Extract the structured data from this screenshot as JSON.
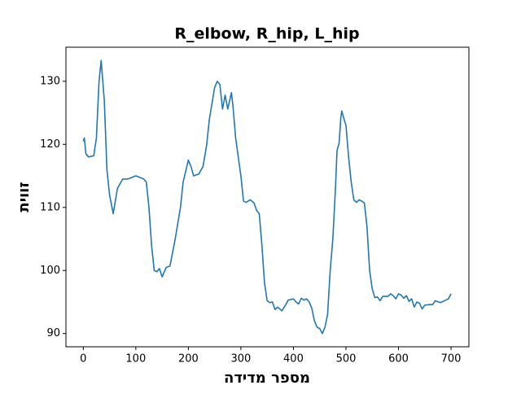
{
  "chart_data": {
    "type": "line",
    "title": "R_elbow, R_hip, L_hip",
    "x_label": "מספר מדידה",
    "y_label": "זווית",
    "color": "#1f77b4",
    "x": [
      0,
      2,
      5,
      10,
      20,
      25,
      30,
      34,
      40,
      45,
      50,
      57,
      65,
      75,
      85,
      100,
      115,
      120,
      125,
      130,
      135,
      140,
      145,
      150,
      158,
      165,
      175,
      185,
      190,
      200,
      205,
      210,
      220,
      228,
      235,
      240,
      250,
      255,
      260,
      265,
      270,
      275,
      282,
      285,
      290,
      300,
      305,
      310,
      318,
      325,
      330,
      335,
      340,
      345,
      350,
      355,
      360,
      365,
      370,
      378,
      385,
      390,
      400,
      405,
      410,
      415,
      420,
      425,
      430,
      435,
      440,
      445,
      450,
      455,
      460,
      465,
      470,
      475,
      480,
      483,
      487,
      490,
      492,
      497,
      500,
      505,
      510,
      515,
      520,
      525,
      530,
      535,
      540,
      545,
      550,
      555,
      560,
      565,
      570,
      580,
      585,
      590,
      595,
      600,
      605,
      610,
      615,
      620,
      625,
      630,
      635,
      640,
      645,
      650,
      660,
      665,
      670,
      680,
      690,
      695,
      700
    ],
    "values": [
      120.5,
      121,
      118.5,
      118,
      118.2,
      121,
      130,
      133.3,
      127,
      116,
      112,
      109,
      113,
      114.5,
      114.5,
      115,
      114.5,
      114,
      110,
      104,
      100,
      99.8,
      100.3,
      99,
      100.5,
      100.7,
      105,
      110,
      114,
      117.5,
      116.5,
      115,
      115.3,
      116.5,
      120,
      124,
      129,
      130,
      129.5,
      125.6,
      127.8,
      125.6,
      128.2,
      126,
      121,
      115,
      111,
      110.8,
      111.2,
      110.7,
      109.5,
      109,
      104,
      98,
      95.2,
      94.9,
      95,
      93.8,
      94.2,
      93.6,
      94.5,
      95.3,
      95.5,
      95,
      94.7,
      95.6,
      95.3,
      95.5,
      95,
      94,
      92,
      91,
      90.8,
      90,
      91,
      93,
      100,
      105,
      113,
      119,
      120.2,
      124,
      125.3,
      123.8,
      123,
      118,
      114,
      111.2,
      110.8,
      111.2,
      111,
      110.7,
      107,
      100,
      97.1,
      95.7,
      95.8,
      95.2,
      95.9,
      95.9,
      96.3,
      96,
      95.5,
      96.3,
      96.1,
      95.6,
      96,
      95.1,
      95.5,
      94.2,
      95,
      94.8,
      93.9,
      94.5,
      94.6,
      94.6,
      95.2,
      94.9,
      95.3,
      95.5,
      96.3
    ],
    "xlim": [
      -33,
      734
    ],
    "ylim": [
      87.9,
      135.4
    ],
    "xticks": [
      0,
      100,
      200,
      300,
      400,
      500,
      600,
      700
    ],
    "yticks": [
      90,
      100,
      110,
      120,
      130
    ]
  }
}
